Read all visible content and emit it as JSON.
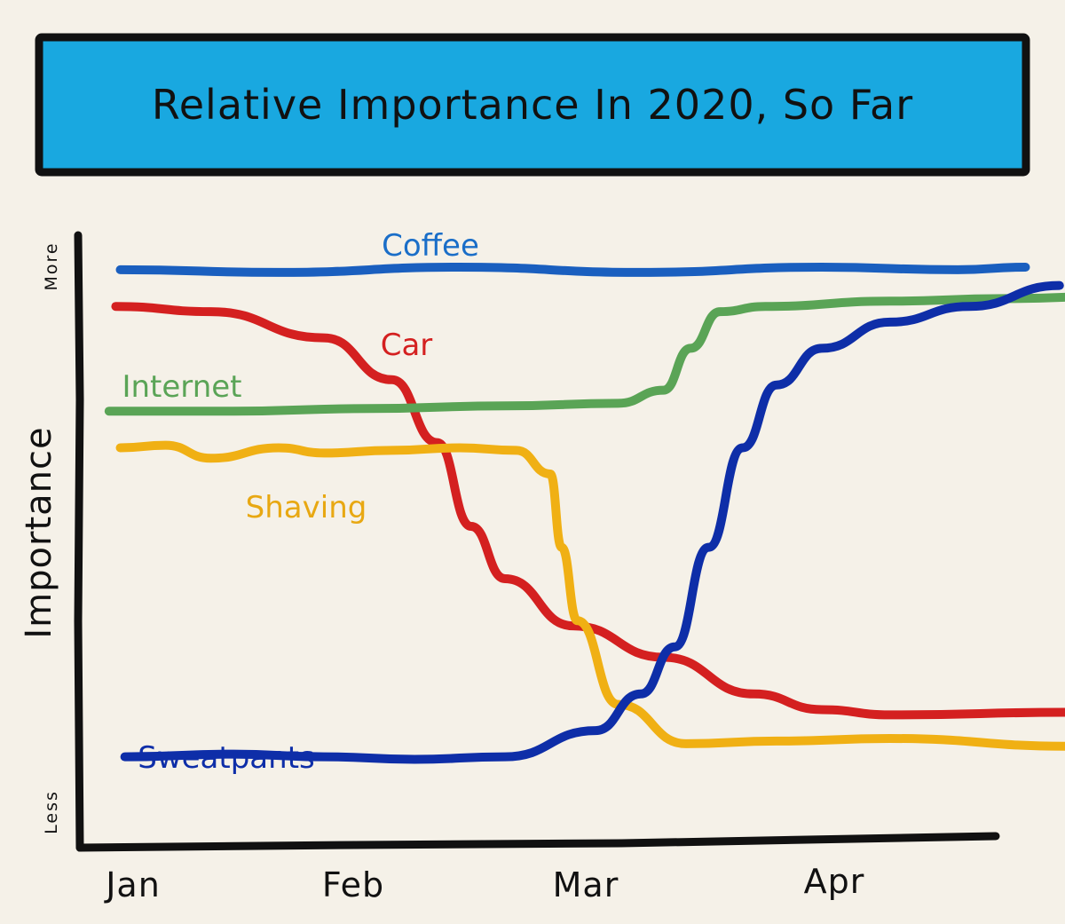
{
  "chart_data": {
    "type": "line",
    "title": "Relative Importance In 2020, So Far",
    "xlabel": "",
    "ylabel": "Importance",
    "y_scale_labels": {
      "high": "More",
      "low": "Less"
    },
    "categories": [
      "Jan",
      "Feb",
      "Mar",
      "Apr"
    ],
    "xlim": [
      0,
      4.3
    ],
    "ylim": [
      0,
      10
    ],
    "grid": false,
    "legend": "inline labels next to lines",
    "series": [
      {
        "name": "Coffee",
        "color": "#1a5fbf",
        "x": [
          0.1,
          0.8,
          1.6,
          2.4,
          3.2,
          3.8,
          4.1
        ],
        "y": [
          9.9,
          9.85,
          9.95,
          9.85,
          9.95,
          9.9,
          9.95
        ]
      },
      {
        "name": "Car",
        "color": "#d42020",
        "x": [
          0.08,
          0.5,
          1.0,
          1.3,
          1.5,
          1.65,
          1.8,
          2.1,
          2.5,
          2.9,
          3.2,
          3.5,
          4.3
        ],
        "y": [
          9.2,
          9.1,
          8.6,
          7.8,
          6.6,
          5.0,
          4.0,
          3.1,
          2.5,
          1.8,
          1.5,
          1.4,
          1.45
        ]
      },
      {
        "name": "Internet",
        "color": "#5aa456",
        "x": [
          0.05,
          0.6,
          1.2,
          1.8,
          2.3,
          2.5,
          2.62,
          2.75,
          2.95,
          3.5,
          4.0,
          4.55
        ],
        "y": [
          7.2,
          7.2,
          7.25,
          7.3,
          7.35,
          7.6,
          8.4,
          9.1,
          9.2,
          9.3,
          9.35,
          9.4
        ]
      },
      {
        "name": "Shaving",
        "color": "#f0b014",
        "x": [
          0.1,
          0.3,
          0.5,
          0.8,
          1.0,
          1.3,
          1.6,
          1.85,
          2.0,
          2.05,
          2.12,
          2.3,
          2.6,
          3.0,
          3.5,
          4.3
        ],
        "y": [
          6.5,
          6.55,
          6.3,
          6.5,
          6.4,
          6.45,
          6.5,
          6.45,
          6.0,
          4.6,
          3.2,
          1.6,
          0.85,
          0.9,
          0.95,
          0.8
        ]
      },
      {
        "name": "Sweatpants",
        "color": "#0e2ea8",
        "x": [
          0.12,
          0.6,
          1.0,
          1.4,
          1.8,
          2.2,
          2.4,
          2.55,
          2.7,
          2.85,
          3.0,
          3.2,
          3.5,
          3.85,
          4.25
        ],
        "y": [
          0.6,
          0.65,
          0.6,
          0.55,
          0.6,
          1.1,
          1.8,
          2.7,
          4.6,
          6.5,
          7.7,
          8.4,
          8.9,
          9.2,
          9.6
        ]
      }
    ]
  }
}
